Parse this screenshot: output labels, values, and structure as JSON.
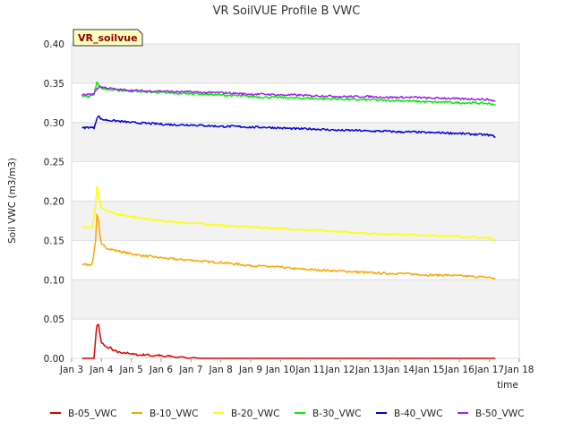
{
  "chart_data": {
    "type": "line",
    "title": "VR SoilVUE Profile B VWC",
    "xlabel": "time",
    "ylabel": "Soil VWC (m3/m3)",
    "badge": "VR_soilvue",
    "x_tick_labels": [
      "Jan 3",
      "Jan 4",
      "Jan 5",
      "Jan 6",
      "Jan 7",
      "Jan 8",
      "Jan 9",
      "Jan 10",
      "Jan 11",
      "Jan 12",
      "Jan 13",
      "Jan 14",
      "Jan 15",
      "Jan 16",
      "Jan 17",
      "Jan 18"
    ],
    "x_ticks_day": [
      3,
      4,
      5,
      6,
      7,
      8,
      9,
      10,
      11,
      12,
      13,
      14,
      15,
      16,
      17,
      18
    ],
    "xlim": [
      3,
      18
    ],
    "y_ticks": [
      0.0,
      0.05,
      0.1,
      0.15,
      0.2,
      0.25,
      0.3,
      0.35,
      0.4
    ],
    "y_tick_labels": [
      "0.00",
      "0.05",
      "0.10",
      "0.15",
      "0.20",
      "0.25",
      "0.30",
      "0.35",
      "0.40"
    ],
    "ylim": [
      0,
      0.4
    ],
    "grid": true,
    "legend_position": "bottom",
    "series": [
      {
        "name": "B-05_VWC",
        "color": "#dd0000",
        "x": [
          3.35,
          3.75,
          3.8,
          3.85,
          3.9,
          3.95,
          4.0,
          4.1,
          4.2,
          4.3,
          4.4,
          4.5,
          4.7,
          4.9,
          5.1,
          5.3,
          5.5,
          5.7,
          5.9,
          6.1,
          6.3,
          6.5,
          6.7,
          6.9,
          7.1,
          7.3,
          8,
          9,
          10,
          11,
          12,
          13,
          14,
          15,
          16,
          17.2
        ],
        "y": [
          0.0,
          0.0,
          0.025,
          0.042,
          0.044,
          0.03,
          0.02,
          0.016,
          0.013,
          0.014,
          0.01,
          0.009,
          0.006,
          0.007,
          0.005,
          0.004,
          0.005,
          0.003,
          0.004,
          0.002,
          0.003,
          0.001,
          0.002,
          0.0,
          0.001,
          0.0,
          0.0,
          0.0,
          0.0,
          0.0,
          0.0,
          0.0,
          0.0,
          0.0,
          0.0,
          0.0
        ]
      },
      {
        "name": "B-10_VWC",
        "color": "#ffa500",
        "x": [
          3.35,
          3.6,
          3.7,
          3.8,
          3.85,
          3.9,
          3.95,
          4.0,
          4.2,
          4.5,
          5,
          5.5,
          6,
          6.5,
          7,
          7.5,
          8,
          8.5,
          9,
          9.5,
          10,
          10.5,
          11,
          11.5,
          12,
          12.5,
          13,
          13.5,
          14,
          14.5,
          15,
          15.5,
          16,
          16.5,
          17,
          17.2
        ],
        "y": [
          0.12,
          0.119,
          0.121,
          0.15,
          0.183,
          0.175,
          0.155,
          0.145,
          0.14,
          0.137,
          0.133,
          0.13,
          0.128,
          0.126,
          0.125,
          0.123,
          0.122,
          0.12,
          0.118,
          0.117,
          0.116,
          0.114,
          0.113,
          0.112,
          0.111,
          0.11,
          0.109,
          0.108,
          0.108,
          0.107,
          0.106,
          0.106,
          0.105,
          0.104,
          0.103,
          0.101
        ]
      },
      {
        "name": "B-20_VWC",
        "color": "#ffff00",
        "x": [
          3.35,
          3.6,
          3.7,
          3.8,
          3.85,
          3.9,
          3.95,
          4.0,
          4.2,
          4.5,
          5,
          5.5,
          6,
          6.5,
          7,
          7.5,
          8,
          8.5,
          9,
          9.5,
          10,
          10.5,
          11,
          11.5,
          12,
          12.5,
          13,
          13.5,
          14,
          14.5,
          15,
          15.5,
          16,
          16.5,
          17,
          17.2
        ],
        "y": [
          0.167,
          0.166,
          0.168,
          0.195,
          0.218,
          0.212,
          0.2,
          0.192,
          0.188,
          0.184,
          0.18,
          0.177,
          0.175,
          0.173,
          0.172,
          0.171,
          0.169,
          0.168,
          0.167,
          0.166,
          0.165,
          0.164,
          0.163,
          0.162,
          0.161,
          0.16,
          0.159,
          0.158,
          0.158,
          0.157,
          0.156,
          0.156,
          0.155,
          0.154,
          0.153,
          0.151
        ]
      },
      {
        "name": "B-30_VWC",
        "color": "#00ee00",
        "x": [
          3.35,
          3.6,
          3.75,
          3.85,
          3.9,
          4.0,
          4.2,
          4.5,
          5,
          5.5,
          6,
          6.5,
          7,
          7.5,
          8,
          8.5,
          9,
          9.5,
          10,
          10.5,
          11,
          11.5,
          12,
          12.5,
          13,
          13.5,
          14,
          14.5,
          15,
          15.5,
          16,
          16.5,
          17,
          17.2
        ],
        "y": [
          0.334,
          0.333,
          0.336,
          0.352,
          0.348,
          0.344,
          0.342,
          0.341,
          0.34,
          0.339,
          0.338,
          0.337,
          0.337,
          0.336,
          0.335,
          0.334,
          0.333,
          0.332,
          0.332,
          0.331,
          0.331,
          0.33,
          0.33,
          0.329,
          0.329,
          0.328,
          0.328,
          0.327,
          0.326,
          0.326,
          0.325,
          0.325,
          0.324,
          0.323
        ]
      },
      {
        "name": "B-40_VWC",
        "color": "#0000dd",
        "x": [
          3.35,
          3.6,
          3.75,
          3.85,
          3.9,
          4.0,
          4.2,
          4.5,
          5,
          5.5,
          6,
          6.5,
          7,
          7.5,
          8,
          8.5,
          9,
          9.5,
          10,
          10.5,
          11,
          11.5,
          12,
          12.5,
          13,
          13.5,
          14,
          14.5,
          15,
          15.5,
          16,
          16.5,
          17,
          17.2
        ],
        "y": [
          0.293,
          0.294,
          0.293,
          0.306,
          0.308,
          0.304,
          0.303,
          0.302,
          0.3,
          0.299,
          0.298,
          0.297,
          0.297,
          0.296,
          0.295,
          0.295,
          0.294,
          0.294,
          0.293,
          0.292,
          0.292,
          0.291,
          0.29,
          0.29,
          0.289,
          0.289,
          0.288,
          0.288,
          0.287,
          0.287,
          0.286,
          0.285,
          0.284,
          0.282
        ]
      },
      {
        "name": "B-50_VWC",
        "color": "#a020f0",
        "x": [
          3.35,
          3.6,
          3.75,
          3.85,
          3.95,
          4.0,
          4.2,
          4.5,
          5,
          5.5,
          6,
          6.5,
          7,
          7.5,
          8,
          8.5,
          9,
          9.5,
          10,
          10.5,
          11,
          11.5,
          12,
          12.5,
          13,
          13.5,
          14,
          14.5,
          15,
          15.5,
          16,
          16.5,
          17,
          17.2
        ],
        "y": [
          0.335,
          0.336,
          0.337,
          0.343,
          0.346,
          0.345,
          0.344,
          0.342,
          0.341,
          0.34,
          0.34,
          0.339,
          0.339,
          0.338,
          0.338,
          0.337,
          0.336,
          0.336,
          0.335,
          0.335,
          0.334,
          0.334,
          0.333,
          0.333,
          0.333,
          0.332,
          0.332,
          0.332,
          0.331,
          0.331,
          0.33,
          0.33,
          0.329,
          0.327
        ]
      }
    ]
  }
}
